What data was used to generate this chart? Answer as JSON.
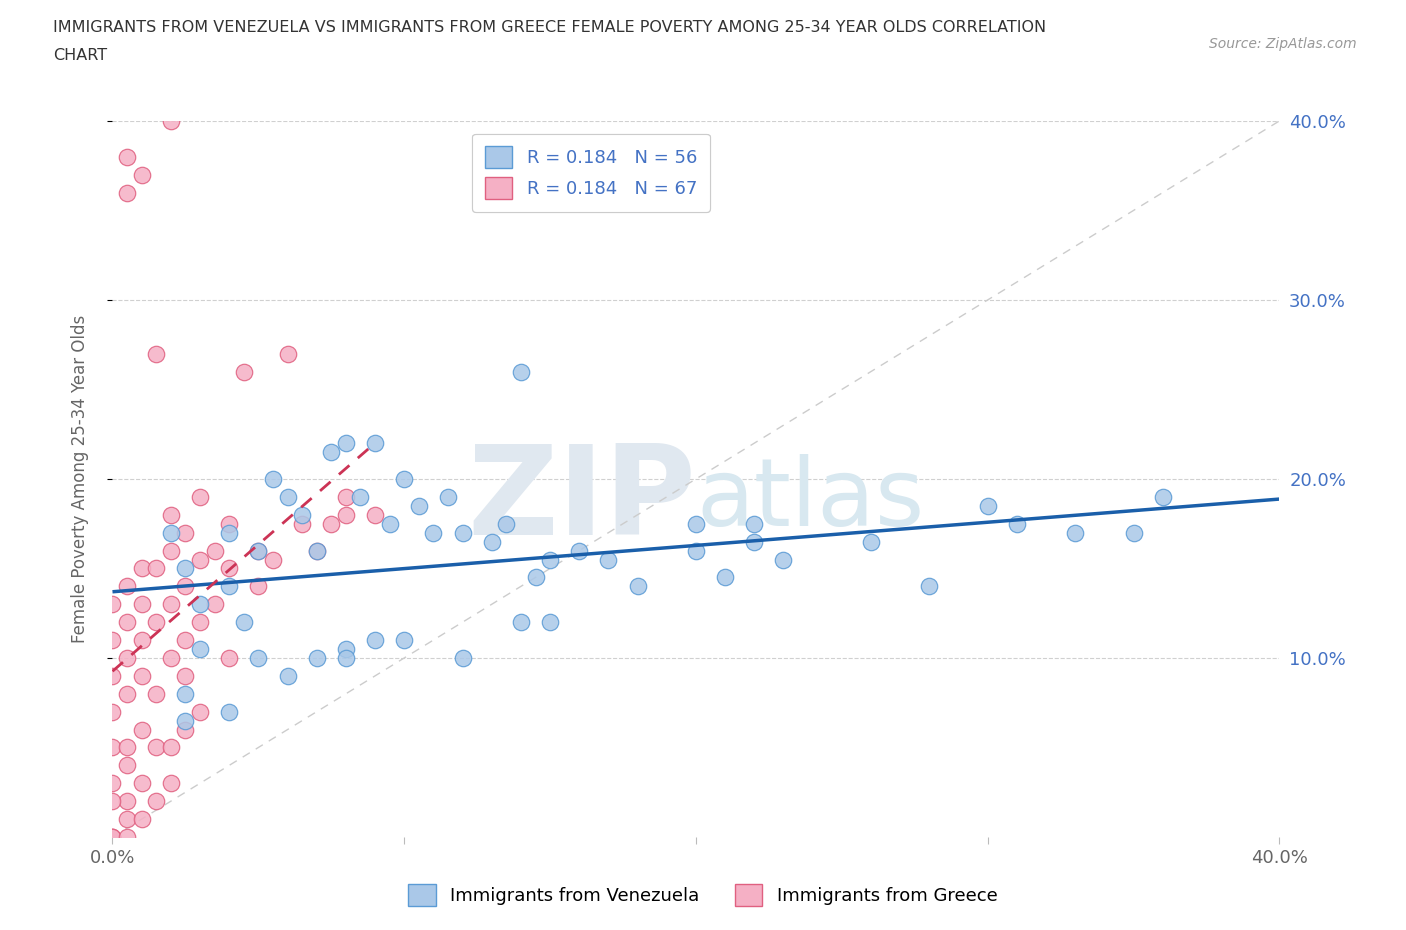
{
  "title_line1": "IMMIGRANTS FROM VENEZUELA VS IMMIGRANTS FROM GREECE FEMALE POVERTY AMONG 25-34 YEAR OLDS CORRELATION",
  "title_line2": "CHART",
  "source_text": "Source: ZipAtlas.com",
  "ylabel": "Female Poverty Among 25-34 Year Olds",
  "xlim": [
    0.0,
    0.4
  ],
  "ylim": [
    0.0,
    0.4
  ],
  "background_color": "#ffffff",
  "grid_color": "#d0d0d0",
  "venezuela_color": "#aac8e8",
  "greece_color": "#f5b0c5",
  "venezuela_edge": "#5b9bd5",
  "greece_edge": "#e06080",
  "trend_venezuela_color": "#1a5faa",
  "trend_greece_color": "#cc3355",
  "diagonal_color": "#cccccc",
  "R_venezuela": 0.184,
  "N_venezuela": 56,
  "R_greece": 0.184,
  "N_greece": 67,
  "watermark_color": "#e0e8f0",
  "label_color": "#4472c4",
  "venezuela_x": [
    0.02,
    0.025,
    0.03,
    0.04,
    0.04,
    0.045,
    0.05,
    0.055,
    0.06,
    0.065,
    0.07,
    0.075,
    0.08,
    0.085,
    0.09,
    0.095,
    0.1,
    0.105,
    0.11,
    0.115,
    0.12,
    0.13,
    0.135,
    0.14,
    0.145,
    0.15,
    0.16,
    0.18,
    0.2,
    0.21,
    0.22,
    0.23,
    0.26,
    0.28,
    0.3,
    0.31,
    0.33,
    0.35,
    0.36,
    0.025,
    0.03,
    0.07,
    0.08,
    0.09,
    0.14,
    0.17,
    0.025,
    0.04,
    0.05,
    0.06,
    0.08,
    0.1,
    0.12,
    0.15,
    0.2,
    0.22
  ],
  "venezuela_y": [
    0.17,
    0.15,
    0.13,
    0.14,
    0.17,
    0.12,
    0.16,
    0.2,
    0.19,
    0.18,
    0.16,
    0.215,
    0.22,
    0.19,
    0.22,
    0.175,
    0.2,
    0.185,
    0.17,
    0.19,
    0.17,
    0.165,
    0.175,
    0.26,
    0.145,
    0.155,
    0.16,
    0.14,
    0.16,
    0.145,
    0.175,
    0.155,
    0.165,
    0.14,
    0.185,
    0.175,
    0.17,
    0.17,
    0.19,
    0.08,
    0.105,
    0.1,
    0.105,
    0.11,
    0.12,
    0.155,
    0.065,
    0.07,
    0.1,
    0.09,
    0.1,
    0.11,
    0.1,
    0.12,
    0.175,
    0.165
  ],
  "greece_x": [
    0.0,
    0.0,
    0.0,
    0.0,
    0.0,
    0.0,
    0.0,
    0.005,
    0.005,
    0.005,
    0.005,
    0.005,
    0.005,
    0.005,
    0.01,
    0.01,
    0.01,
    0.01,
    0.01,
    0.015,
    0.015,
    0.015,
    0.015,
    0.02,
    0.02,
    0.02,
    0.02,
    0.02,
    0.025,
    0.025,
    0.025,
    0.025,
    0.03,
    0.03,
    0.03,
    0.035,
    0.035,
    0.04,
    0.04,
    0.04,
    0.045,
    0.05,
    0.05,
    0.055,
    0.06,
    0.065,
    0.07,
    0.075,
    0.08,
    0.08,
    0.09,
    0.005,
    0.01,
    0.015,
    0.02,
    0.025,
    0.03,
    0.005,
    0.01,
    0.0,
    0.0,
    0.005,
    0.0,
    0.005,
    0.01,
    0.015,
    0.02
  ],
  "greece_y": [
    0.0,
    0.03,
    0.05,
    0.07,
    0.09,
    0.11,
    0.13,
    0.05,
    0.08,
    0.1,
    0.12,
    0.14,
    0.36,
    0.38,
    0.09,
    0.11,
    0.13,
    0.15,
    0.37,
    0.08,
    0.12,
    0.15,
    0.27,
    0.1,
    0.13,
    0.16,
    0.18,
    0.4,
    0.09,
    0.11,
    0.14,
    0.17,
    0.12,
    0.155,
    0.19,
    0.13,
    0.16,
    0.15,
    0.175,
    0.1,
    0.26,
    0.14,
    0.16,
    0.155,
    0.27,
    0.175,
    0.16,
    0.175,
    0.18,
    0.19,
    0.18,
    0.04,
    0.06,
    0.05,
    0.05,
    0.06,
    0.07,
    0.02,
    0.03,
    0.0,
    0.0,
    0.0,
    0.02,
    0.01,
    0.01,
    0.02,
    0.03
  ]
}
